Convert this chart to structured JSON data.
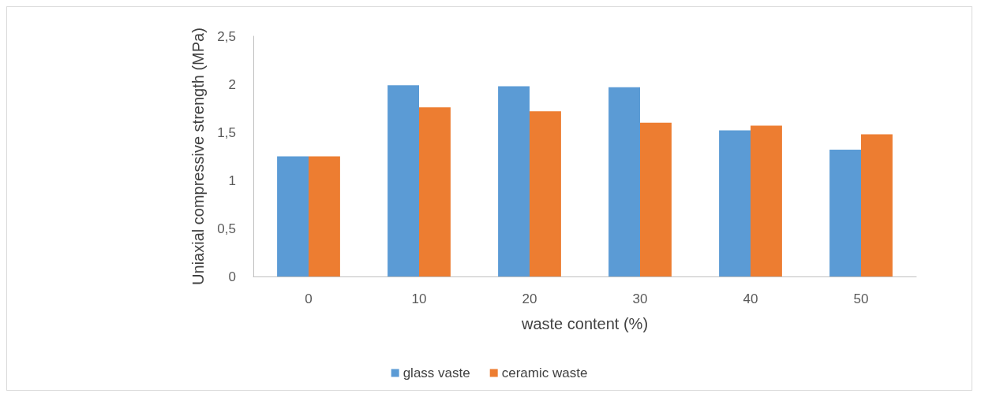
{
  "chart_data": {
    "type": "bar",
    "xlabel": "waste content (%)",
    "ylabel": "Uniaxial compressive strength (MPa)",
    "categories": [
      "0",
      "10",
      "20",
      "30",
      "40",
      "50"
    ],
    "series": [
      {
        "name": "glass vaste",
        "color": "#5b9bd5",
        "values": [
          1.25,
          1.99,
          1.98,
          1.97,
          1.52,
          1.32
        ]
      },
      {
        "name": "ceramic waste",
        "color": "#ed7d31",
        "values": [
          1.25,
          1.76,
          1.72,
          1.6,
          1.57,
          1.48
        ]
      }
    ],
    "ylim": [
      0,
      2.5
    ],
    "yticks": [
      {
        "value": 0,
        "label": "0"
      },
      {
        "value": 0.5,
        "label": "0,5"
      },
      {
        "value": 1,
        "label": "1"
      },
      {
        "value": 1.5,
        "label": "1,5"
      },
      {
        "value": 2,
        "label": "2"
      },
      {
        "value": 2.5,
        "label": "2,5"
      }
    ],
    "grid": false,
    "legend": "bottom"
  }
}
